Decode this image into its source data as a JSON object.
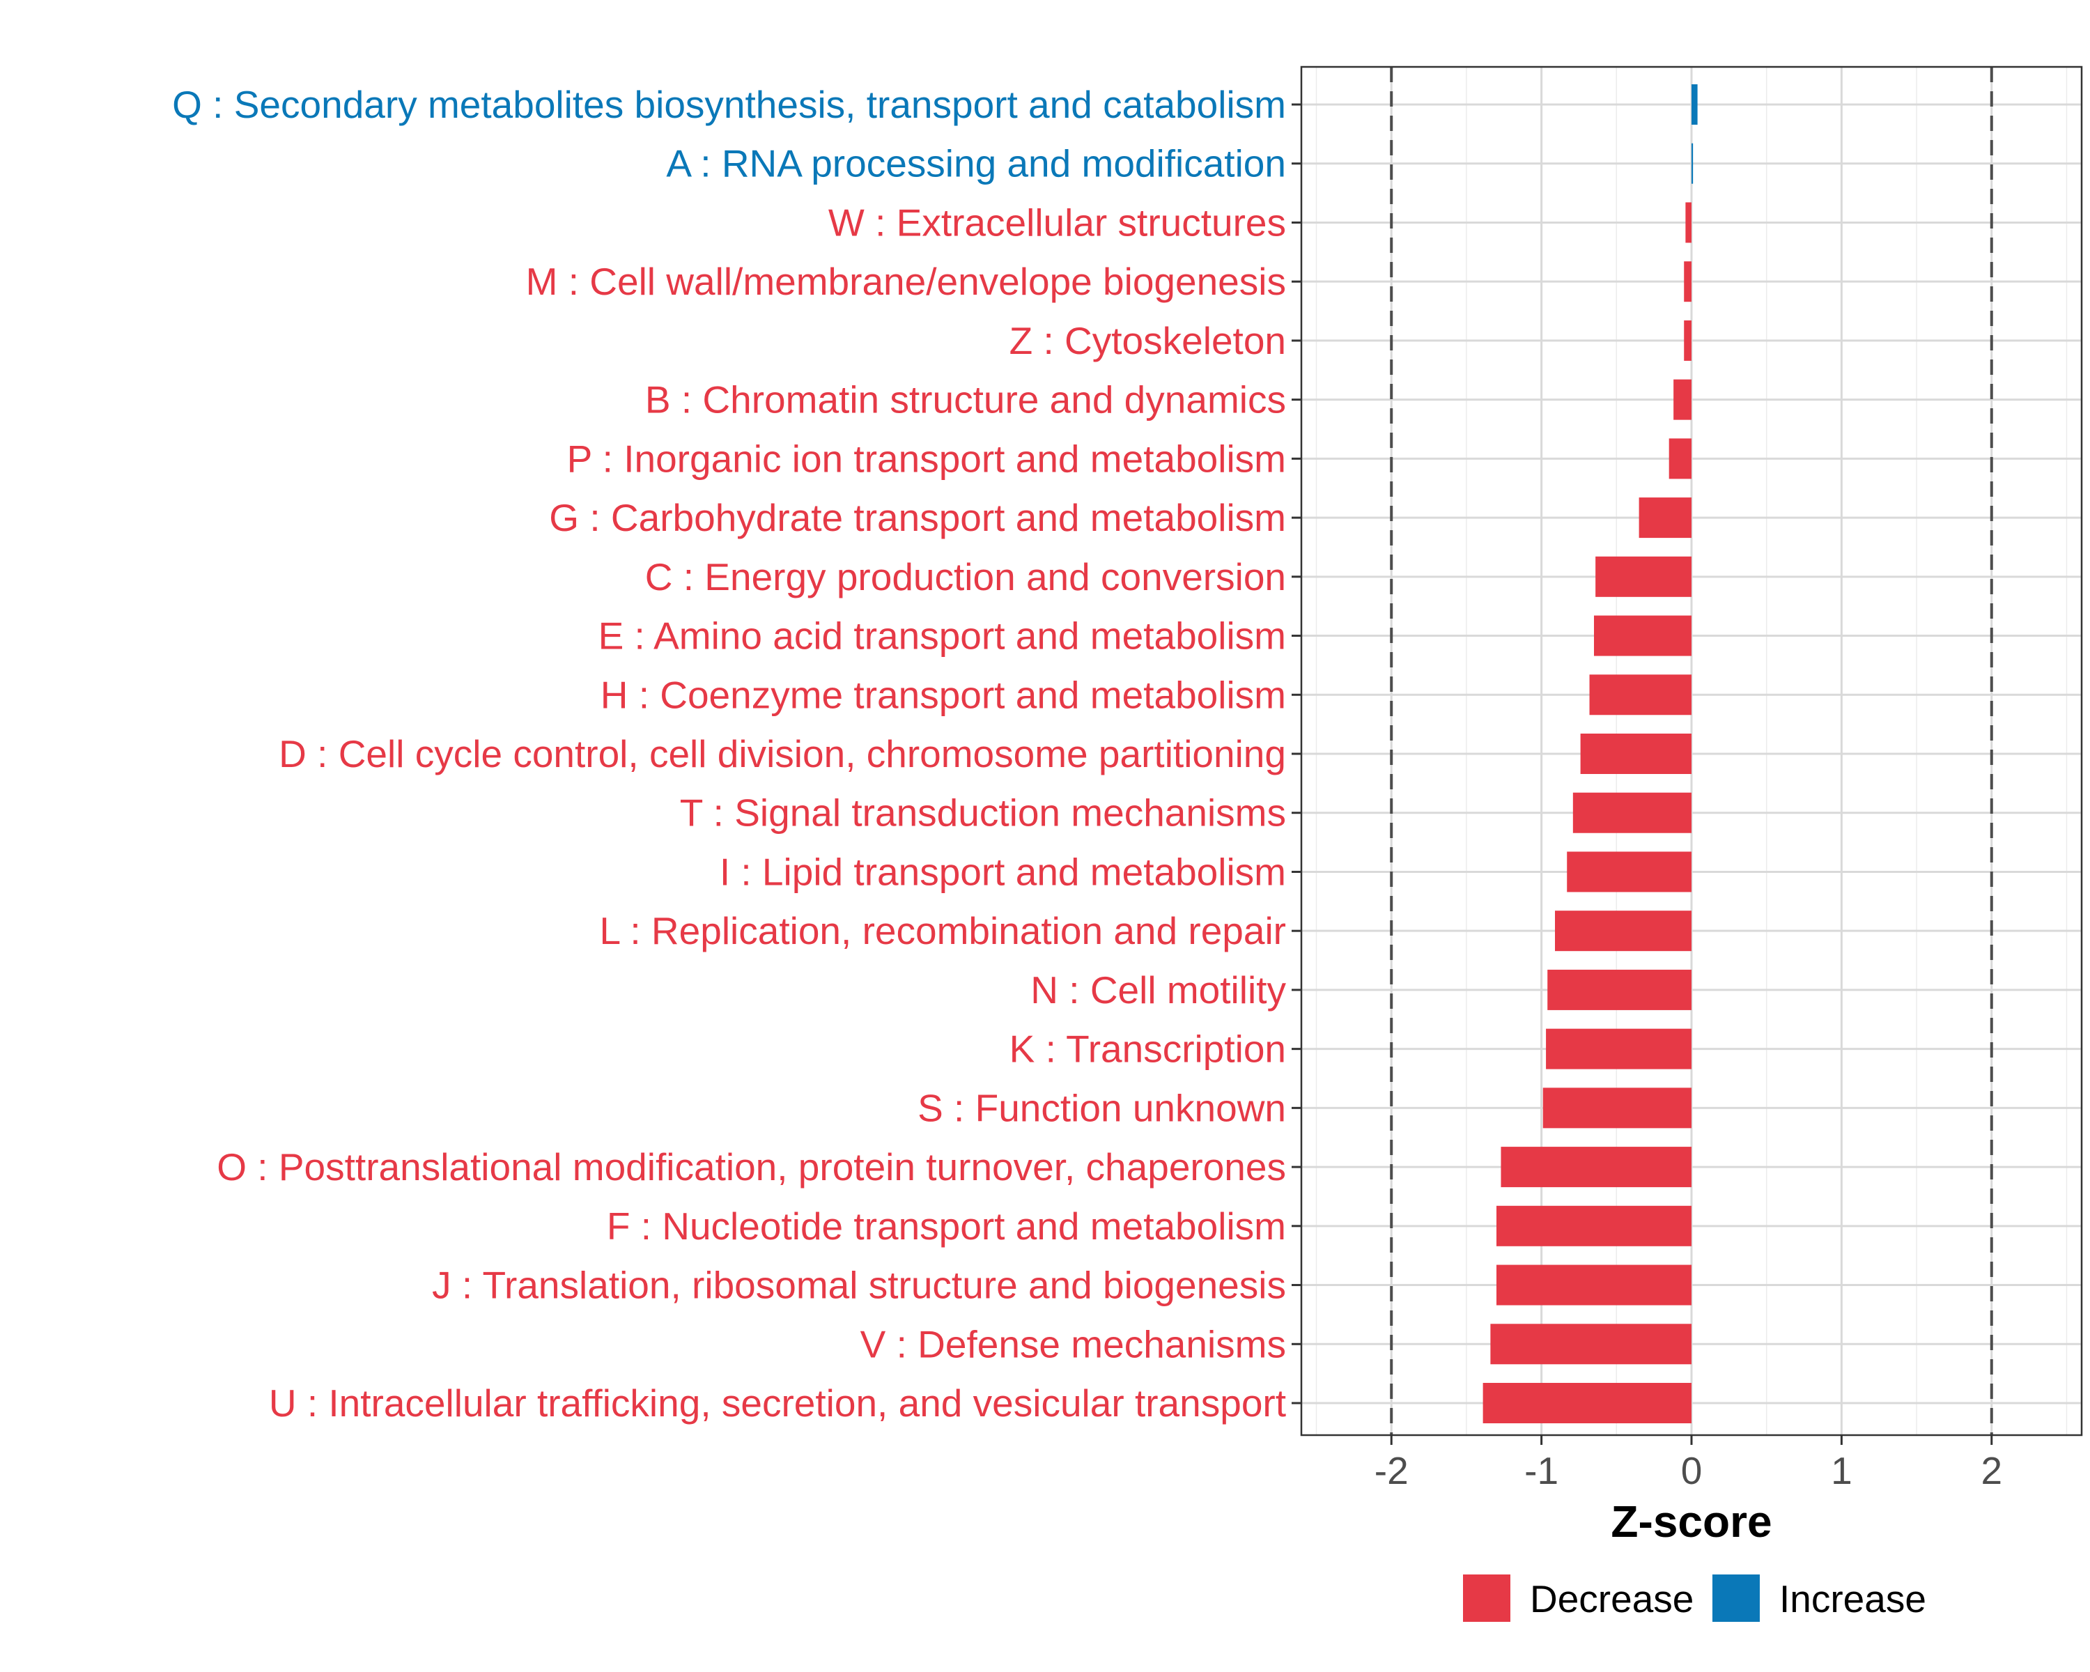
{
  "chart_data": {
    "type": "bar",
    "orientation": "horizontal",
    "title": "",
    "xlabel": "Z-score",
    "ylabel": "",
    "xlim": [
      -2.6,
      2.6
    ],
    "x_ticks": [
      -2,
      -1,
      0,
      1,
      2
    ],
    "x_tick_labels": [
      "-2",
      "-1",
      "0",
      "1",
      "2"
    ],
    "reference_lines": [
      -2,
      2
    ],
    "grid": true,
    "colors": {
      "Decrease": "#E63946",
      "Increase": "#0A78B8"
    },
    "legend": {
      "placement": "bottom-right",
      "entries": [
        {
          "label": "Decrease",
          "color": "#E63946"
        },
        {
          "label": "Increase",
          "color": "#0A78B8"
        }
      ]
    },
    "categories": [
      {
        "label": "Q : Secondary metabolites biosynthesis, transport and catabolism",
        "value": 0.04,
        "direction": "Increase"
      },
      {
        "label": "A : RNA processing and modification",
        "value": 0.01,
        "direction": "Increase"
      },
      {
        "label": "W : Extracellular structures",
        "value": -0.04,
        "direction": "Decrease"
      },
      {
        "label": "M : Cell wall/membrane/envelope biogenesis",
        "value": -0.05,
        "direction": "Decrease"
      },
      {
        "label": "Z : Cytoskeleton",
        "value": -0.05,
        "direction": "Decrease"
      },
      {
        "label": "B : Chromatin structure and dynamics",
        "value": -0.12,
        "direction": "Decrease"
      },
      {
        "label": "P : Inorganic ion transport and metabolism",
        "value": -0.15,
        "direction": "Decrease"
      },
      {
        "label": "G : Carbohydrate transport and metabolism",
        "value": -0.35,
        "direction": "Decrease"
      },
      {
        "label": "C : Energy production and conversion",
        "value": -0.64,
        "direction": "Decrease"
      },
      {
        "label": "E : Amino acid transport and metabolism",
        "value": -0.65,
        "direction": "Decrease"
      },
      {
        "label": "H : Coenzyme transport and metabolism",
        "value": -0.68,
        "direction": "Decrease"
      },
      {
        "label": "D : Cell cycle control, cell division, chromosome partitioning",
        "value": -0.74,
        "direction": "Decrease"
      },
      {
        "label": "T : Signal transduction mechanisms",
        "value": -0.79,
        "direction": "Decrease"
      },
      {
        "label": "I : Lipid transport and metabolism",
        "value": -0.83,
        "direction": "Decrease"
      },
      {
        "label": "L : Replication, recombination and repair",
        "value": -0.91,
        "direction": "Decrease"
      },
      {
        "label": "N : Cell motility",
        "value": -0.96,
        "direction": "Decrease"
      },
      {
        "label": "K : Transcription",
        "value": -0.97,
        "direction": "Decrease"
      },
      {
        "label": "S : Function unknown",
        "value": -0.99,
        "direction": "Decrease"
      },
      {
        "label": "O : Posttranslational modification, protein turnover, chaperones",
        "value": -1.27,
        "direction": "Decrease"
      },
      {
        "label": "F : Nucleotide transport and metabolism",
        "value": -1.3,
        "direction": "Decrease"
      },
      {
        "label": "J : Translation, ribosomal structure and biogenesis",
        "value": -1.3,
        "direction": "Decrease"
      },
      {
        "label": "V : Defense mechanisms",
        "value": -1.34,
        "direction": "Decrease"
      },
      {
        "label": "U : Intracellular trafficking, secretion, and vesicular transport",
        "value": -1.39,
        "direction": "Decrease"
      }
    ]
  }
}
